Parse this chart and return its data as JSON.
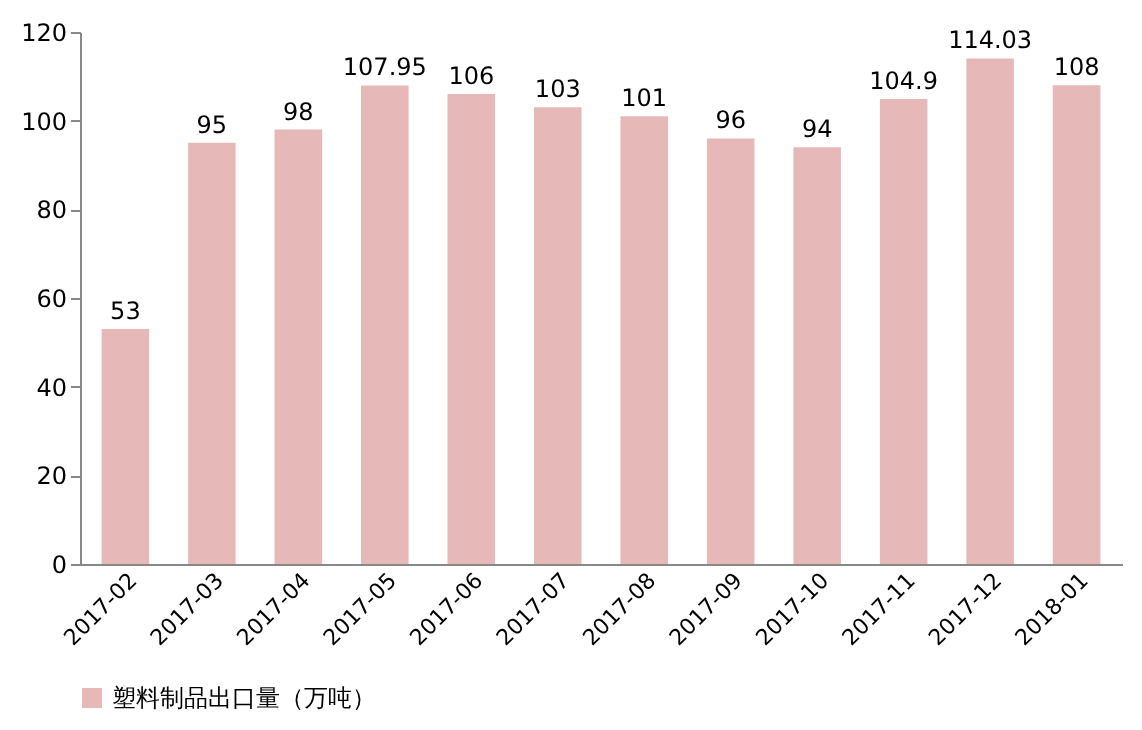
{
  "chart_data": {
    "type": "bar",
    "categories": [
      "2017-02",
      "2017-03",
      "2017-04",
      "2017-05",
      "2017-06",
      "2017-07",
      "2017-08",
      "2017-09",
      "2017-10",
      "2017-11",
      "2017-12",
      "2018-01"
    ],
    "series": [
      {
        "name": "塑料制品出口量（万吨）",
        "color": "#e6b9b8",
        "values": [
          53,
          95,
          98,
          107.95,
          106,
          103,
          101,
          96,
          94,
          104.9,
          114.03,
          108
        ]
      }
    ],
    "ylim": [
      0,
      120
    ],
    "yticks": [
      0,
      20,
      40,
      60,
      80,
      100,
      120
    ],
    "grid": false,
    "legend": "bottom",
    "data_labels": true
  }
}
